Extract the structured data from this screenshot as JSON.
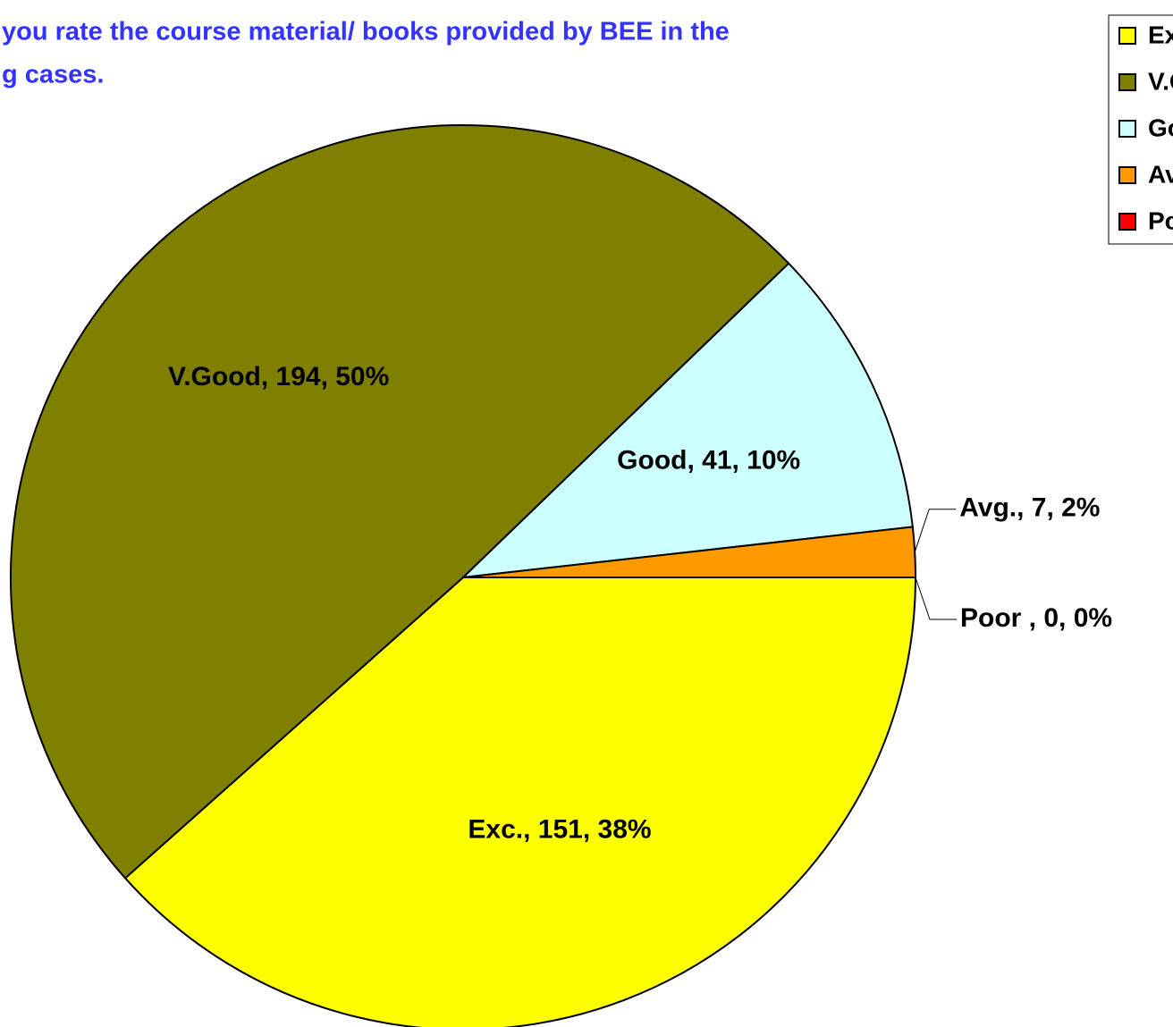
{
  "chart_data": {
    "type": "pie",
    "title": [
      "you rate the course material/ books provided by BEE in the",
      "g cases."
    ],
    "categories": [
      "Exc.",
      "V.Good",
      "Good",
      "Avg.",
      "Poor "
    ],
    "values": [
      151,
      194,
      41,
      7,
      0
    ],
    "value_labels": [
      "Exc., 151, 38%",
      "V.Good, 194, 50%",
      "Good, 41, 10%",
      "Avg., 7, 2%",
      "Poor , 0, 0%"
    ],
    "colors": [
      "#ffff00",
      "#808000",
      "#ccffff",
      "#ff9900",
      "#ff0000"
    ],
    "legend": "top-right"
  }
}
